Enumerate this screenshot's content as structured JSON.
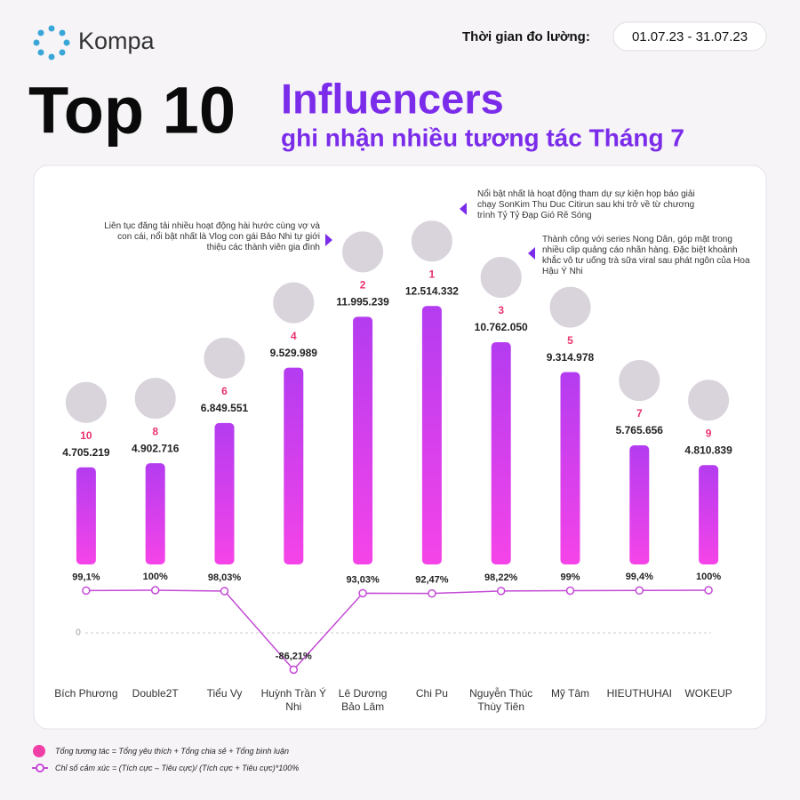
{
  "header": {
    "brand": "Kompa",
    "period_label": "Thời gian đo lường:",
    "period": "01.07.23 - 31.07.23"
  },
  "chart_data": {
    "type": "bar",
    "title": "Top 10",
    "title_highlight": "Influencers",
    "subtitle": "ghi nhận nhiều tương tác Tháng 7",
    "categories": [
      "Bích Phương",
      "Double2T",
      "Tiểu Vy",
      "Huỳnh Trần Ý Nhi",
      "Lê Dương Bảo Lâm",
      "Chi Pu",
      "Nguyễn Thúc Thùy Tiên",
      "Mỹ Tâm",
      "HIEUTHUHAI",
      "WOKEUP"
    ],
    "series": [
      {
        "name": "Tổng tương tác = Tổng yêu thích + Tổng chia sẻ + Tổng bình luận",
        "color": "#b43cf0",
        "values": [
          4705219,
          4902716,
          6849551,
          9529989,
          11995239,
          12514332,
          10762050,
          9314978,
          5765656,
          4810839
        ],
        "value_labels": [
          "4.705.219",
          "4.902.716",
          "6.849.551",
          "9.529.989",
          "11.995.239",
          "12.514.332",
          "10.762.050",
          "9.314.978",
          "5.765.656",
          "4.810.839"
        ],
        "ranks": [
          10,
          8,
          6,
          4,
          2,
          1,
          3,
          5,
          7,
          9
        ]
      },
      {
        "name": "Chỉ số cảm xúc = (Tích cực – Tiêu cực)/ (Tích cực + Tiêu cực)*100%",
        "type": "line",
        "axis": "y2",
        "color": "#c44ad6",
        "values": [
          99.1,
          100,
          98.03,
          -86.21,
          93.03,
          92.47,
          98.22,
          99,
          99.4,
          100
        ],
        "value_labels": [
          "99,1%",
          "100%",
          "98,03%",
          "-86,21%",
          "93,03%",
          "92,47%",
          "98,22%",
          "99%",
          "99,4%",
          "100%"
        ]
      }
    ],
    "ylim": [
      0,
      13000000
    ],
    "y2lim": [
      -100,
      100
    ],
    "y2ticks": [
      0
    ],
    "annotations": [
      "Liên tục đăng tải nhiều hoạt động hài hước cùng vợ và con cái, nổi bật nhất là Vlog con gái Bảo Nhi tự giới thiệu các thành viên gia đình",
      "Nổi bật nhất là hoạt động tham dự sự kiện họp báo giải chạy SonKim Thu Duc Citirun sau khi trở về từ chương trình Tỷ Tỷ Đạp Gió Rẽ Sóng",
      "Thành công với series Nong Dân, góp mặt trong nhiều clip quảng cáo nhãn hàng. Đặc biệt khoảnh khắc vô tư uống trà sữa viral sau phát ngôn của Hoa Hậu Ý Nhi"
    ]
  }
}
